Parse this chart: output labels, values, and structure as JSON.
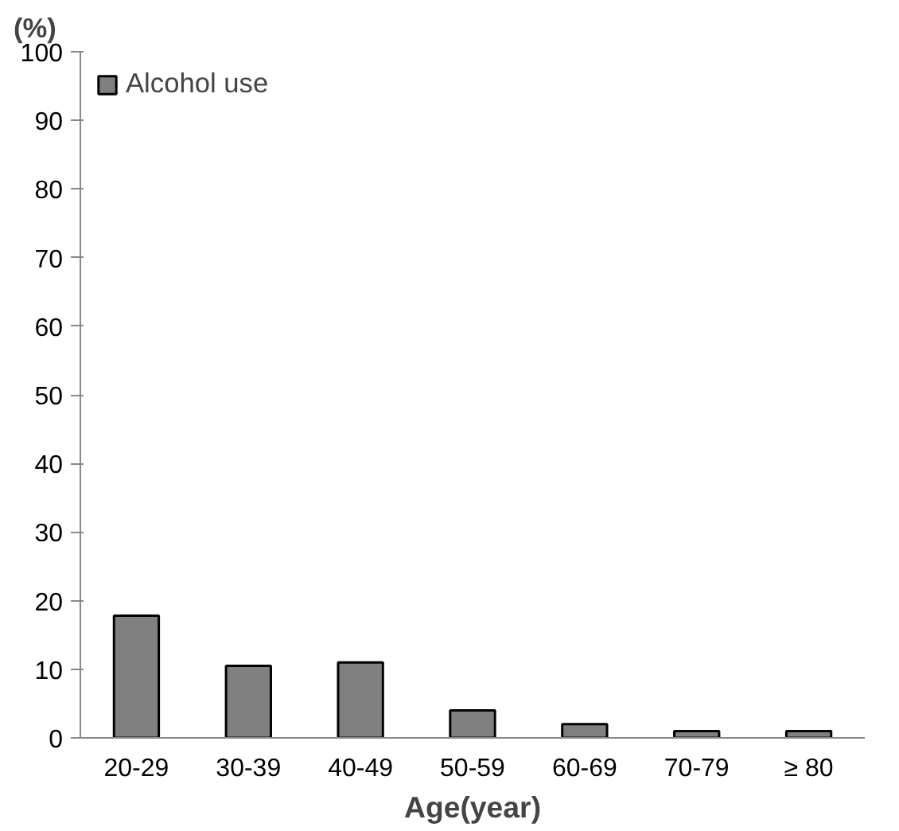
{
  "chart_data": {
    "type": "bar",
    "ylabel": "(%)",
    "xlabel": "Age(year)",
    "categories": [
      "20-29",
      "30-39",
      "40-49",
      "50-59",
      "60-69",
      "70-79",
      "≥ 80"
    ],
    "series": [
      {
        "name": "Alcohol use",
        "color": "#808080",
        "values": [
          17.8,
          10.5,
          11,
          4,
          2,
          1,
          1
        ]
      }
    ],
    "ylim": [
      0,
      100
    ],
    "yticks": [
      0,
      10,
      20,
      30,
      40,
      50,
      60,
      70,
      80,
      90,
      100
    ],
    "grid": false,
    "legend": "top left"
  }
}
